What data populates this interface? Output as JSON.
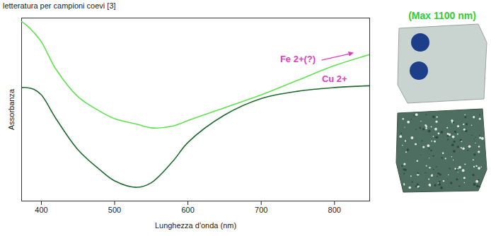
{
  "chart_data": {
    "type": "line",
    "subtitle": "letteratura per campioni coevi [3]",
    "annotations": [
      "(Max 1100 nm)"
    ],
    "x_label": "Lunghezza d'onda (nm)",
    "y_label": "Assorbanza",
    "x": [
      373,
      380,
      390,
      400,
      420,
      450,
      480,
      500,
      530,
      550,
      580,
      600,
      650,
      700,
      750,
      800,
      848
    ],
    "series": [
      {
        "name": "Fe 2+(?)",
        "color": "#5ee34f",
        "line_style": "solid",
        "values": [
          0.98,
          0.96,
          0.92,
          0.87,
          0.72,
          0.57,
          0.49,
          0.45,
          0.42,
          0.4,
          0.41,
          0.44,
          0.51,
          0.58,
          0.66,
          0.74,
          0.8
        ]
      },
      {
        "name": "Cu 2+",
        "color": "#1f6b2e",
        "line_style": "solid",
        "values": [
          0.62,
          0.62,
          0.61,
          0.58,
          0.45,
          0.28,
          0.17,
          0.11,
          0.075,
          0.1,
          0.22,
          0.32,
          0.47,
          0.56,
          0.6,
          0.62,
          0.63
        ]
      }
    ],
    "xlim": [
      373,
      848
    ],
    "xticks": [
      400,
      500,
      600,
      700,
      800
    ],
    "ylim": [
      0,
      1
    ],
    "tick_labels": "x",
    "grid": false
  }
}
